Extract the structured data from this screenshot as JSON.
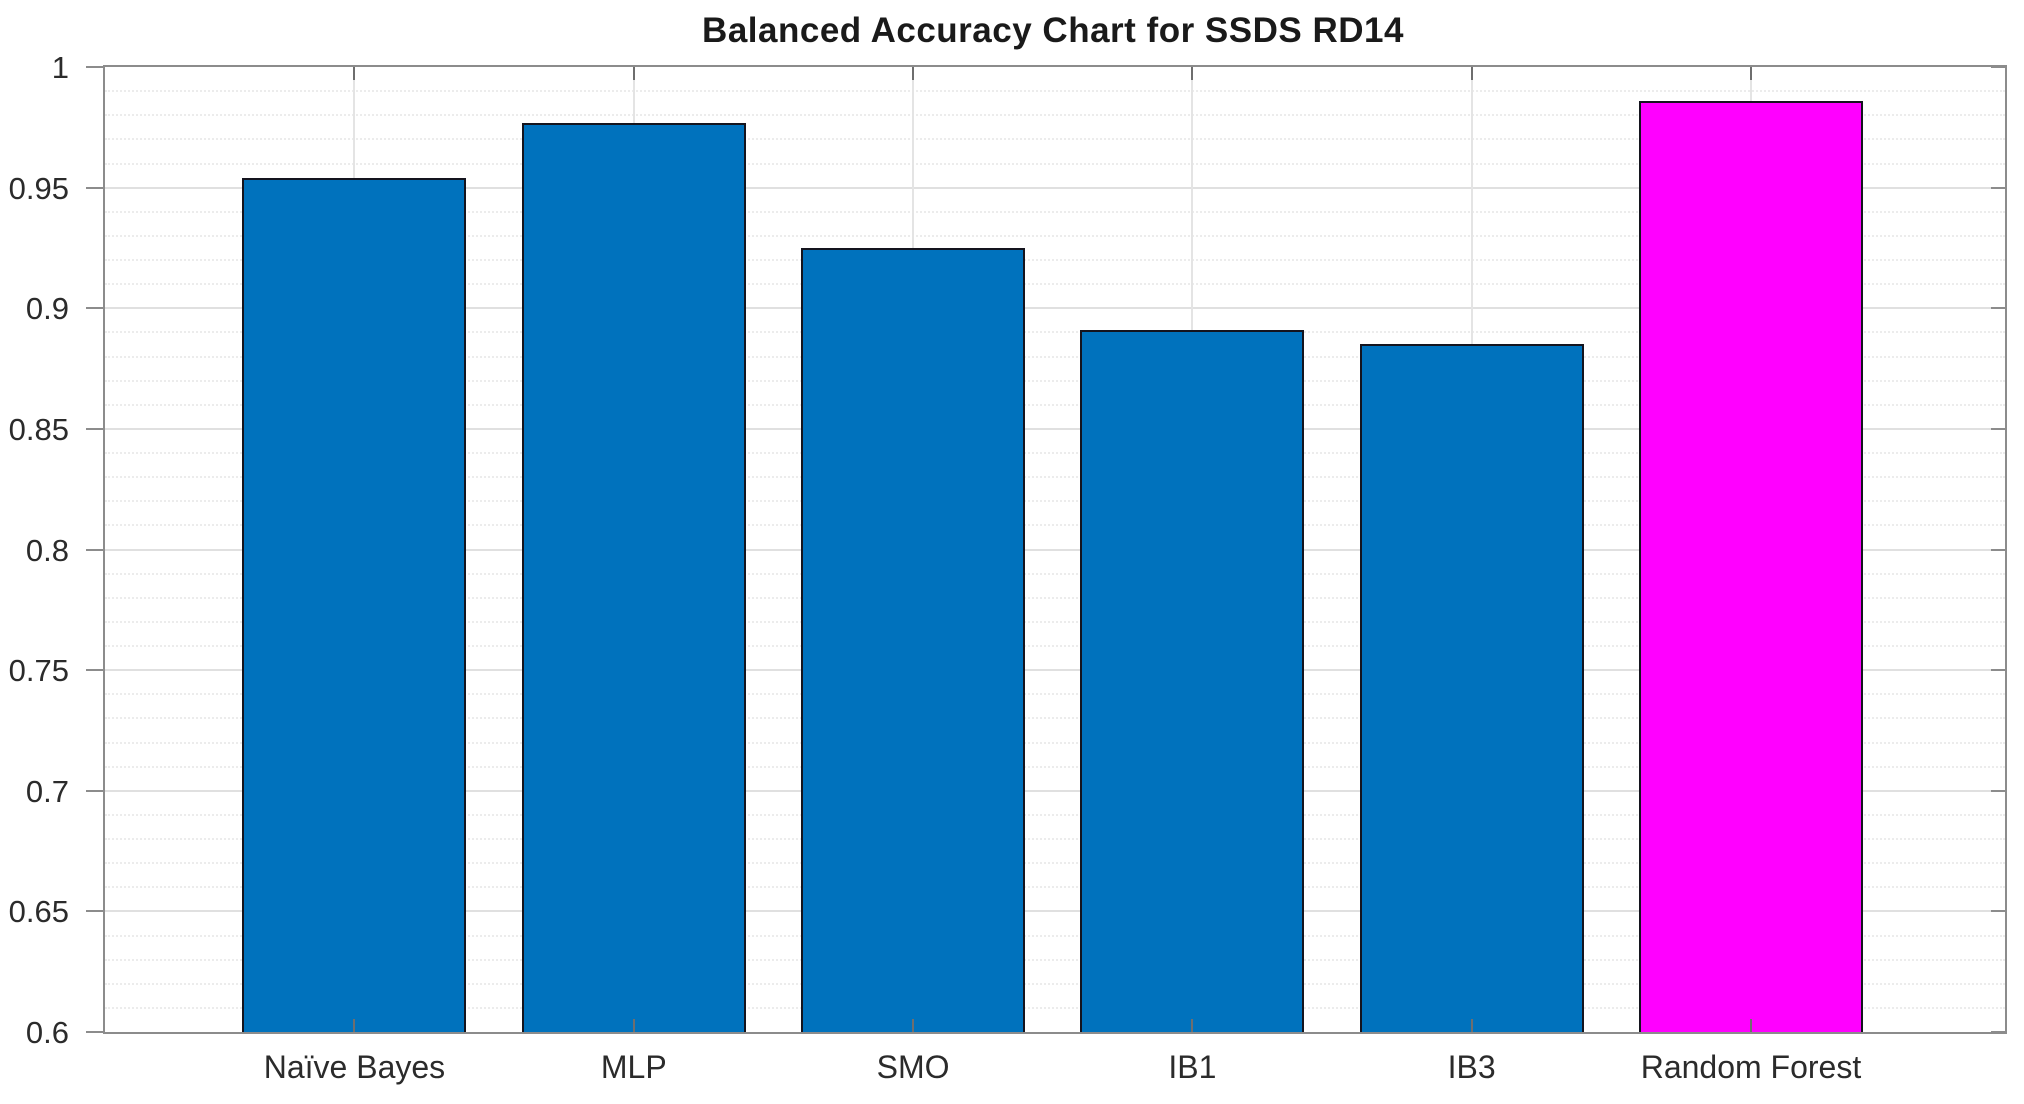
{
  "title": "Balanced Accuracy Chart for SSDS RD14",
  "chart_data": {
    "type": "bar",
    "title": "Balanced Accuracy Chart for SSDS RD14",
    "categories": [
      "Naïve Bayes",
      "MLP",
      "SMO",
      "IB1",
      "IB3",
      "Random Forest"
    ],
    "values": [
      0.954,
      0.977,
      0.925,
      0.891,
      0.885,
      0.986
    ],
    "bar_colors": [
      "#0072BD",
      "#0072BD",
      "#0072BD",
      "#0072BD",
      "#0072BD",
      "#FF00FF"
    ],
    "xlabel": "",
    "ylabel": "",
    "ylim": [
      0.6,
      1.0
    ],
    "ytick_step": 0.05,
    "yminor_step": 0.01,
    "ytick_labels": [
      "0.6",
      "0.65",
      "0.7",
      "0.75",
      "0.8",
      "0.85",
      "0.9",
      "0.95",
      "1"
    ],
    "grid": "major horizontal solid, minor horizontal dotted, vertical solid at category centers",
    "legend": null,
    "colors": {
      "bar_blue": "#0072BD",
      "bar_magenta": "#FF00FF",
      "bar_edge": "#14141e",
      "axis_box": "#8c8c8c",
      "grid_major": "#e0e0e0",
      "grid_minor": "#ececec",
      "text": "#2b2b2b"
    }
  }
}
